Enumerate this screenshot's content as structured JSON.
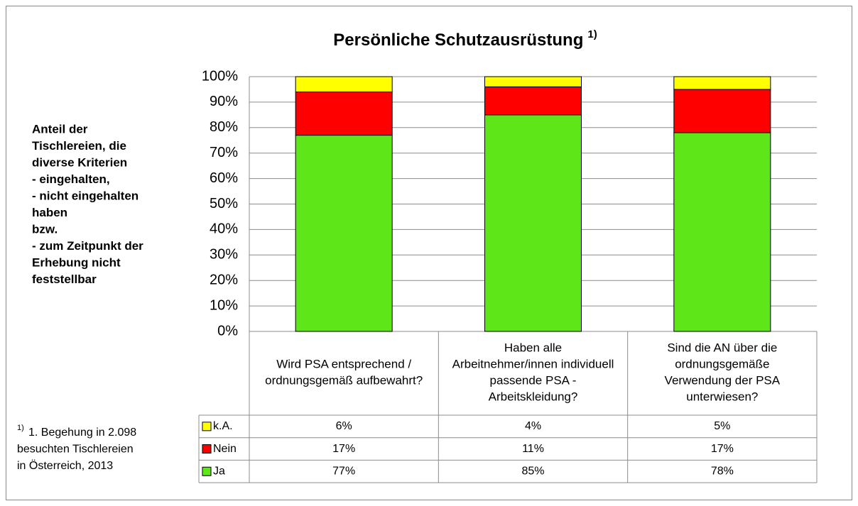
{
  "chart_data": {
    "type": "stacked-bar",
    "title": "Persönliche Schutzausrüstung",
    "title_superscript": "1)",
    "y_axis_label": [
      "Anteil der",
      "Tischlereien, die",
      "diverse Kriterien",
      "- eingehalten,",
      "- nicht eingehalten",
      "haben",
      "bzw.",
      "- zum Zeitpunkt der",
      "Erhebung nicht",
      "feststellbar"
    ],
    "footnote_marker": "1)",
    "footnote": [
      "1. Begehung in 2.098",
      "besuchten Tischlereien",
      "in Österreich, 2013"
    ],
    "categories": [
      "Wird PSA entsprechend / ordnungsgemäß aufbewahrt?",
      "Haben alle Arbeitnehmer/innen individuell passende PSA - Arbeitskleidung?",
      "Sind die AN über die ordnungsgemäße Verwendung der PSA unterwiesen?"
    ],
    "series": [
      {
        "name": "Ja",
        "color": "#5fe619",
        "values": [
          77,
          85,
          78
        ],
        "value_labels": [
          "77%",
          "85%",
          "78%"
        ]
      },
      {
        "name": "Nein",
        "color": "#ff0000",
        "values": [
          17,
          11,
          17
        ],
        "value_labels": [
          "17%",
          "11%",
          "17%"
        ]
      },
      {
        "name": "k.A.",
        "color": "#ffff00",
        "values": [
          6,
          4,
          5
        ],
        "value_labels": [
          "6%",
          "4%",
          "5%"
        ]
      }
    ],
    "ylim": [
      0,
      100
    ],
    "yticks": [
      {
        "value": 0,
        "label": "0%"
      },
      {
        "value": 10,
        "label": "10%"
      },
      {
        "value": 20,
        "label": "20%"
      },
      {
        "value": 30,
        "label": "30%"
      },
      {
        "value": 40,
        "label": "40%"
      },
      {
        "value": 50,
        "label": "50%"
      },
      {
        "value": 60,
        "label": "60%"
      },
      {
        "value": 70,
        "label": "70%"
      },
      {
        "value": 80,
        "label": "80%"
      },
      {
        "value": 90,
        "label": "90%"
      },
      {
        "value": 100,
        "label": "100%"
      }
    ],
    "grid": true,
    "data_table": true
  }
}
